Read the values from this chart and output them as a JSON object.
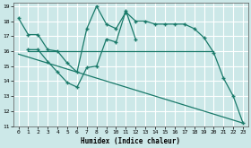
{
  "title": "",
  "xlabel": "Humidex (Indice chaleur)",
  "background_color": "#cce8e8",
  "grid_color": "#ffffff",
  "line_color": "#1a7a6a",
  "xlim": [
    -0.5,
    23.5
  ],
  "ylim": [
    11,
    19.2
  ],
  "xticks": [
    0,
    1,
    2,
    3,
    4,
    5,
    6,
    7,
    8,
    9,
    10,
    11,
    12,
    13,
    14,
    15,
    16,
    17,
    18,
    19,
    20,
    21,
    22,
    23
  ],
  "yticks": [
    11,
    12,
    13,
    14,
    15,
    16,
    17,
    18,
    19
  ],
  "line1_x": [
    0,
    1,
    2,
    3,
    4,
    5,
    6,
    7,
    8,
    9,
    10,
    11,
    12,
    13,
    14,
    15,
    16,
    17,
    18,
    19,
    20,
    21,
    22,
    23
  ],
  "line1_y": [
    18.2,
    17.1,
    17.1,
    16.1,
    16.0,
    15.2,
    14.6,
    17.5,
    19.0,
    17.8,
    17.5,
    18.6,
    18.0,
    18.0,
    17.8,
    17.8,
    17.8,
    17.8,
    17.5,
    16.9,
    15.9,
    14.2,
    13.0,
    11.2
  ],
  "line2_x": [
    1,
    2,
    3,
    4,
    5,
    6,
    7,
    8,
    9,
    10,
    11,
    12
  ],
  "line2_y": [
    16.1,
    16.1,
    15.3,
    14.6,
    13.9,
    13.6,
    14.9,
    15.0,
    16.8,
    16.6,
    18.7,
    16.8
  ],
  "line3_x": [
    1,
    20
  ],
  "line3_y": [
    16.0,
    16.0
  ],
  "line4_x": [
    0,
    23
  ],
  "line4_y": [
    15.8,
    11.2
  ],
  "marker": "+"
}
